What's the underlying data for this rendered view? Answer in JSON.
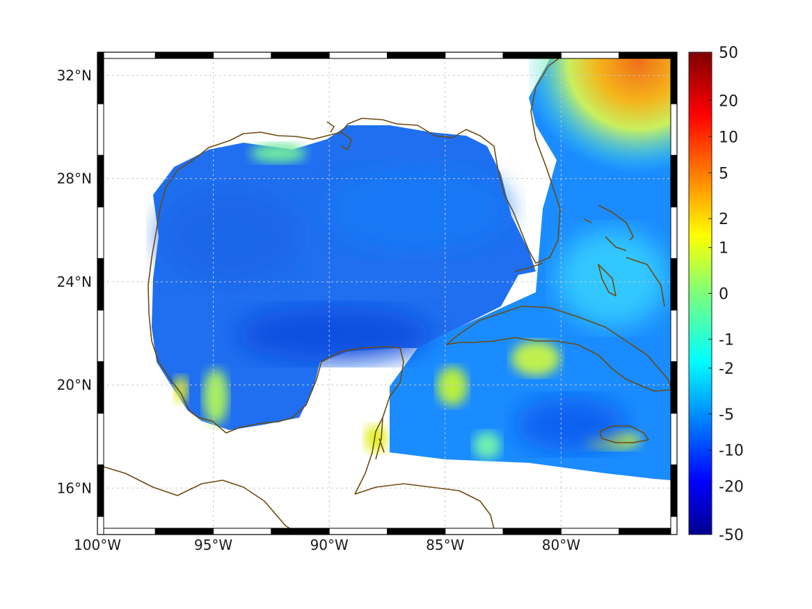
{
  "map": {
    "type": "filled-contour-map",
    "region": "Gulf of Mexico and Caribbean",
    "lon_range": [
      -100,
      -75
    ],
    "lat_range": [
      14.2,
      32.9
    ],
    "x_ticks": [
      {
        "value": -100,
        "label": "100°W"
      },
      {
        "value": -95,
        "label": "95°W"
      },
      {
        "value": -90,
        "label": "90°W"
      },
      {
        "value": -85,
        "label": "85°W"
      },
      {
        "value": -80,
        "label": "80°W"
      }
    ],
    "y_ticks": [
      {
        "value": 32,
        "label": "32°N"
      },
      {
        "value": 28,
        "label": "28°N"
      },
      {
        "value": 24,
        "label": "24°N"
      },
      {
        "value": 20,
        "label": "20°N"
      },
      {
        "value": 16,
        "label": "16°N"
      }
    ],
    "grid": true,
    "colors": {
      "coastline": "#6b4a10",
      "grid": "#c8c8c8",
      "gulf_field": "#1f6ff0",
      "atlantic_north": "#f08a1a"
    }
  },
  "colorbar": {
    "colormap": "jet",
    "levels": [
      "50",
      "20",
      "10",
      "5",
      "2",
      "1",
      "0",
      "-1",
      "-2",
      "-5",
      "-10",
      "-20",
      "-50"
    ],
    "placement": "right"
  }
}
